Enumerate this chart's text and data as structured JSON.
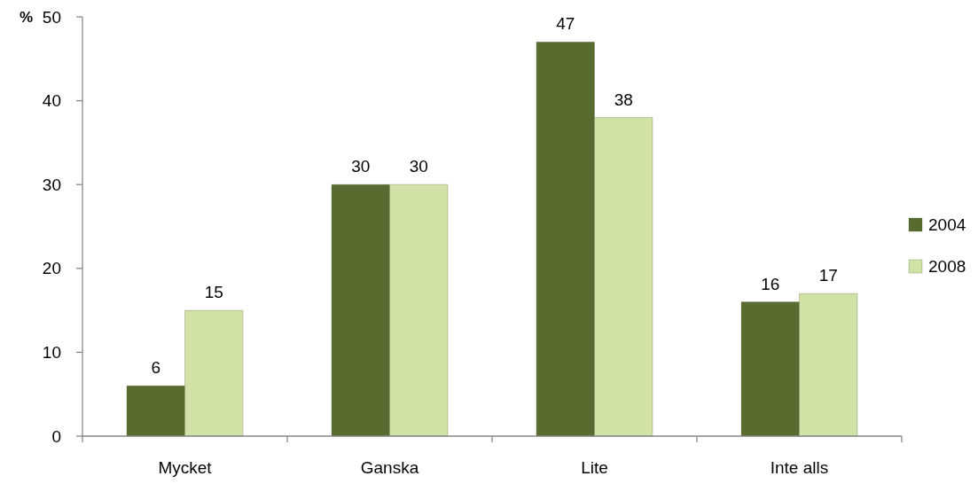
{
  "chart_data": {
    "type": "bar",
    "ylabel": "%",
    "categories": [
      "Mycket",
      "Ganska",
      "Lite",
      "Inte alls"
    ],
    "series": [
      {
        "name": "2004",
        "color": "#586c2f",
        "values": [
          6,
          30,
          47,
          16
        ]
      },
      {
        "name": "2008",
        "color": "#d1e2a7",
        "values": [
          15,
          30,
          38,
          17
        ]
      }
    ],
    "ylim": [
      0,
      50
    ],
    "yticks": [
      0,
      10,
      20,
      30,
      40,
      50
    ],
    "data_labels": true,
    "legend": "right",
    "grid": false
  }
}
